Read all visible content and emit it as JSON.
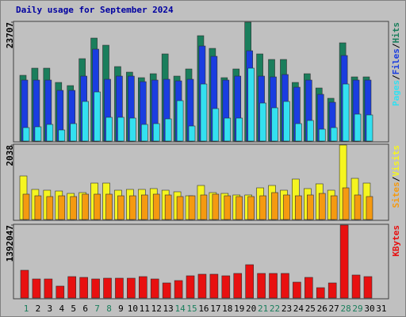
{
  "chart_data": {
    "type": "bar",
    "title": "Daily usage for September 2024",
    "title_color": "#0000a0",
    "categories": [
      "1",
      "2",
      "3",
      "4",
      "5",
      "6",
      "7",
      "8",
      "9",
      "10",
      "11",
      "12",
      "13",
      "14",
      "15",
      "16",
      "17",
      "18",
      "19",
      "20",
      "21",
      "22",
      "23",
      "24",
      "25",
      "26",
      "27",
      "28",
      "29",
      "30",
      "31"
    ],
    "label_colors": [
      "#1a7e5c",
      "#000000",
      "#000000",
      "#000000",
      "#000000",
      "#000000",
      "#1a7e5c",
      "#1a7e5c",
      "#000000",
      "#000000",
      "#000000",
      "#000000",
      "#000000",
      "#1a7e5c",
      "#1a7e5c",
      "#000000",
      "#000000",
      "#000000",
      "#000000",
      "#000000",
      "#1a7e5c",
      "#1a7e5c",
      "#000000",
      "#000000",
      "#000000",
      "#000000",
      "#000000",
      "#1a7e5c",
      "#1a7e5c",
      "#000000",
      "#000000"
    ],
    "legend_separator": "/",
    "panels": [
      {
        "ylim": [
          0,
          23707
        ],
        "yticks": [
          23707
        ],
        "series": [
          {
            "name": "Hits",
            "color": "#1a7e5c",
            "values": [
              13114,
              14536,
              14536,
              11692,
              11060,
              16432,
              20540,
              19118,
              14852,
              13746,
              12640,
              13430,
              17380,
              12956,
              14378,
              21014,
              18486,
              12640,
              14378,
              23707,
              17380,
              16274,
              16274,
              11692,
              13430,
              10586,
              8532,
              19592,
              12798,
              12798,
              null
            ]
          },
          {
            "name": "Files",
            "color": "#1a3de0",
            "values": [
              12166,
              12166,
              12166,
              10112,
              10112,
              12956,
              18328,
              12324,
              12956,
              12956,
              11850,
              12166,
              12324,
              12008,
              12324,
              18960,
              16906,
              12166,
              12956,
              18012,
              12956,
              12798,
              13272,
              10744,
              12166,
              9322,
              7742,
              17064,
              12166,
              12166,
              null
            ]
          },
          {
            "name": "Pages",
            "color": "#33e0f0",
            "values": [
              2686,
              2844,
              3318,
              2212,
              3476,
              7900,
              9796,
              4740,
              4740,
              4582,
              3318,
              3476,
              4424,
              8058,
              3002,
              11376,
              6478,
              4582,
              4582,
              14536,
              7584,
              6636,
              7900,
              3476,
              4108,
              2370,
              2686,
              11376,
              5372,
              5214,
              null
            ]
          }
        ]
      },
      {
        "ylim": [
          0,
          2038
        ],
        "yticks": [
          2038
        ],
        "series": [
          {
            "name": "Visits",
            "color": "#f5f520",
            "values": [
              1192,
              824,
              802,
              780,
              715,
              737,
              997,
              997,
              802,
              824,
              824,
              846,
              802,
              759,
              650,
              932,
              737,
              715,
              672,
              672,
              867,
              932,
              802,
              1106,
              846,
              976,
              802,
              2038,
              1127,
              997,
              null
            ]
          },
          {
            "name": "Sites",
            "color": "#f59a10",
            "values": [
              694,
              650,
              629,
              650,
              629,
              694,
              694,
              694,
              650,
              650,
              672,
              694,
              672,
              629,
              650,
              672,
              694,
              650,
              629,
              629,
              650,
              737,
              672,
              650,
              672,
              715,
              650,
              867,
              672,
              629,
              null
            ]
          }
        ]
      },
      {
        "ylim": [
          0,
          1392047
        ],
        "yticks": [
          1392047
        ],
        "series": [
          {
            "name": "KBytes",
            "color": "#e81010",
            "values": [
              529585,
              363144,
              363144,
              226965,
              408537,
              393406,
              363144,
              378275,
              378275,
              378275,
              408537,
              363144,
              287489,
              332882,
              423668,
              453930,
              453930,
              423668,
              469061,
              635502,
              469061,
              469061,
              469061,
              302620,
              393406,
              196703,
              287489,
              1392047,
              438799,
              408537,
              null
            ]
          }
        ]
      }
    ]
  }
}
